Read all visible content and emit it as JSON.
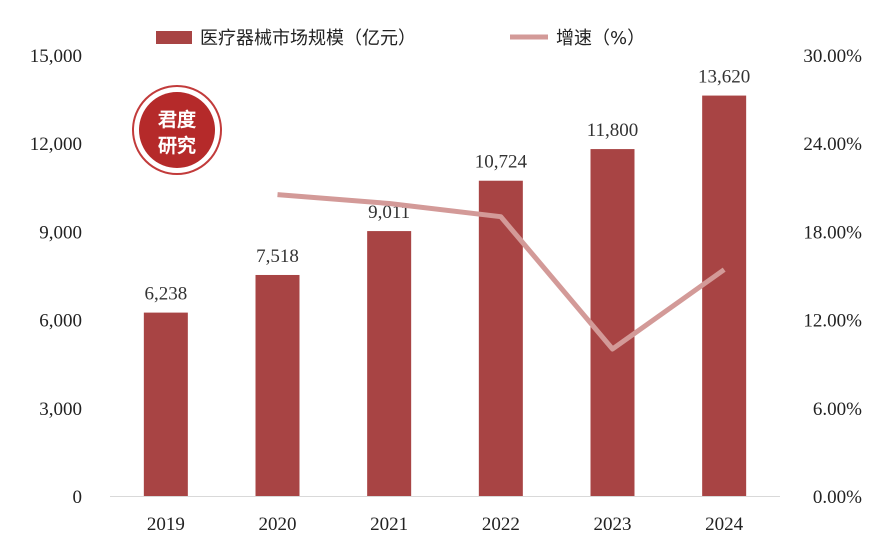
{
  "chart_data": {
    "type": "bar+line",
    "categories": [
      "2019",
      "2020",
      "2021",
      "2022",
      "2023",
      "2024"
    ],
    "series": [
      {
        "name": "医疗器械市场规模（亿元）",
        "type": "bar",
        "axis": "left",
        "values": [
          6238,
          7518,
          9011,
          10724,
          11800,
          13620
        ],
        "labels": [
          "6,238",
          "7,518",
          "9,011",
          "10,724",
          "11,800",
          "13,620"
        ]
      },
      {
        "name": "增速（%）",
        "type": "line",
        "axis": "right",
        "values": [
          null,
          20.5,
          19.9,
          19.0,
          10.0,
          15.4
        ]
      }
    ],
    "y_left": {
      "ylim": [
        0,
        15000
      ],
      "ticks": [
        "0",
        "3,000",
        "6,000",
        "9,000",
        "12,000",
        "15,000"
      ]
    },
    "y_right": {
      "ylim": [
        0,
        30
      ],
      "ticks": [
        "0.00%",
        "6.00%",
        "12.00%",
        "18.00%",
        "24.00%",
        "30.00%"
      ]
    },
    "legend_position": "top",
    "grid": false
  },
  "colors": {
    "bar": "#a84444",
    "line": "#d39a98",
    "stamp": "#b52a2a"
  },
  "watermark": {
    "line1": "君度",
    "line2": "研究"
  }
}
